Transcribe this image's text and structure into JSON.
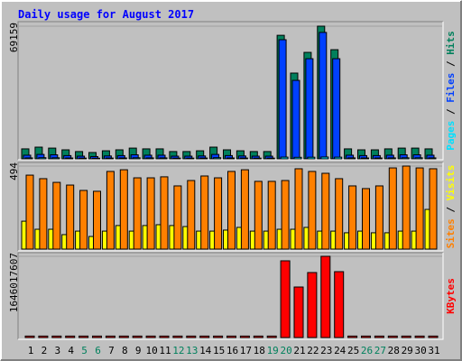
{
  "chart_data": {
    "type": "webalizer-daily",
    "title": "Daily usage for August 2017",
    "categories": [
      "1",
      "2",
      "3",
      "4",
      "5",
      "6",
      "7",
      "8",
      "9",
      "10",
      "11",
      "12",
      "13",
      "14",
      "15",
      "16",
      "17",
      "18",
      "19",
      "20",
      "21",
      "22",
      "23",
      "24",
      "25",
      "26",
      "27",
      "28",
      "29",
      "30",
      "31"
    ],
    "category_colors": [
      "#000000",
      "#000000",
      "#000000",
      "#000000",
      "#00805c",
      "#00805c",
      "#000000",
      "#000000",
      "#000000",
      "#000000",
      "#000000",
      "#00805c",
      "#00805c",
      "#000000",
      "#000000",
      "#000000",
      "#000000",
      "#000000",
      "#00805c",
      "#00805c",
      "#000000",
      "#000000",
      "#000000",
      "#000000",
      "#000000",
      "#00805c",
      "#00805c",
      "#000000",
      "#000000",
      "#000000",
      "#000000"
    ],
    "legend_separator": "/",
    "panels": [
      {
        "ylim": [
          0,
          69159
        ],
        "yticks": [
          69159
        ],
        "series": [
          {
            "name": "Hits",
            "color": "#00805c",
            "values": [
              5200,
              6100,
              5600,
              4700,
              3800,
              3300,
              4200,
              4700,
              5600,
              5200,
              5200,
              3800,
              3800,
              4200,
              6100,
              4700,
              4200,
              3800,
              3800,
              64400,
              44700,
              55500,
              69159,
              56900,
              5200,
              4700,
              4700,
              5200,
              5600,
              5600,
              5200
            ]
          },
          {
            "name": "Files",
            "color": "#0040ff",
            "values": [
              1900,
              2300,
              2100,
              1700,
              1400,
              1200,
              1500,
              1700,
              2100,
              1900,
              1900,
              1400,
              1400,
              1500,
              2300,
              1700,
              1500,
              1400,
              1400,
              62100,
              40900,
              52200,
              65900,
              52200,
              1900,
              1700,
              1700,
              1900,
              2100,
              2100,
              1900
            ]
          },
          {
            "name": "Pages",
            "color": "#00e0ff",
            "values": [
              500,
              600,
              550,
              450,
              380,
              330,
              420,
              460,
              550,
              500,
              500,
              380,
              380,
              420,
              600,
              460,
              420,
              380,
              380,
              900,
              800,
              850,
              950,
              880,
              500,
              460,
              460,
              500,
              550,
              550,
              500
            ]
          }
        ]
      },
      {
        "ylim": [
          0,
          494
        ],
        "yticks": [
          494
        ],
        "series": [
          {
            "name": "Visits",
            "color": "#ffff00",
            "values": [
              166,
              118,
              118,
              86,
              107,
              75,
              107,
              140,
              107,
              140,
              145,
              140,
              134,
              107,
              107,
              113,
              129,
              107,
              107,
              118,
              118,
              129,
              107,
              107,
              97,
              107,
              97,
              97,
              107,
              107,
              236
            ]
          },
          {
            "name": "Sites",
            "color": "#ff8000",
            "values": [
              440,
              419,
              397,
              381,
              349,
              344,
              462,
              472,
              424,
              424,
              430,
              376,
              408,
              435,
              424,
              462,
              472,
              403,
              403,
              408,
              478,
              462,
              451,
              419,
              376,
              360,
              376,
              483,
              494,
              483,
              478
            ]
          }
        ]
      },
      {
        "ylim": [
          0,
          1646017607
        ],
        "yticks": [
          1646017607
        ],
        "series": [
          {
            "name": "KBytes",
            "color": "#ff0000",
            "values": [
              30000000,
              30000000,
              30000000,
              30000000,
              30000000,
              30000000,
              30000000,
              30000000,
              30000000,
              30000000,
              30000000,
              30000000,
              30000000,
              30000000,
              30000000,
              30000000,
              30000000,
              30000000,
              30000000,
              1555000000,
              1024000000,
              1317000000,
              1646017607,
              1335000000,
              30000000,
              30000000,
              30000000,
              30000000,
              30000000,
              30000000,
              30000000
            ]
          }
        ]
      }
    ]
  }
}
